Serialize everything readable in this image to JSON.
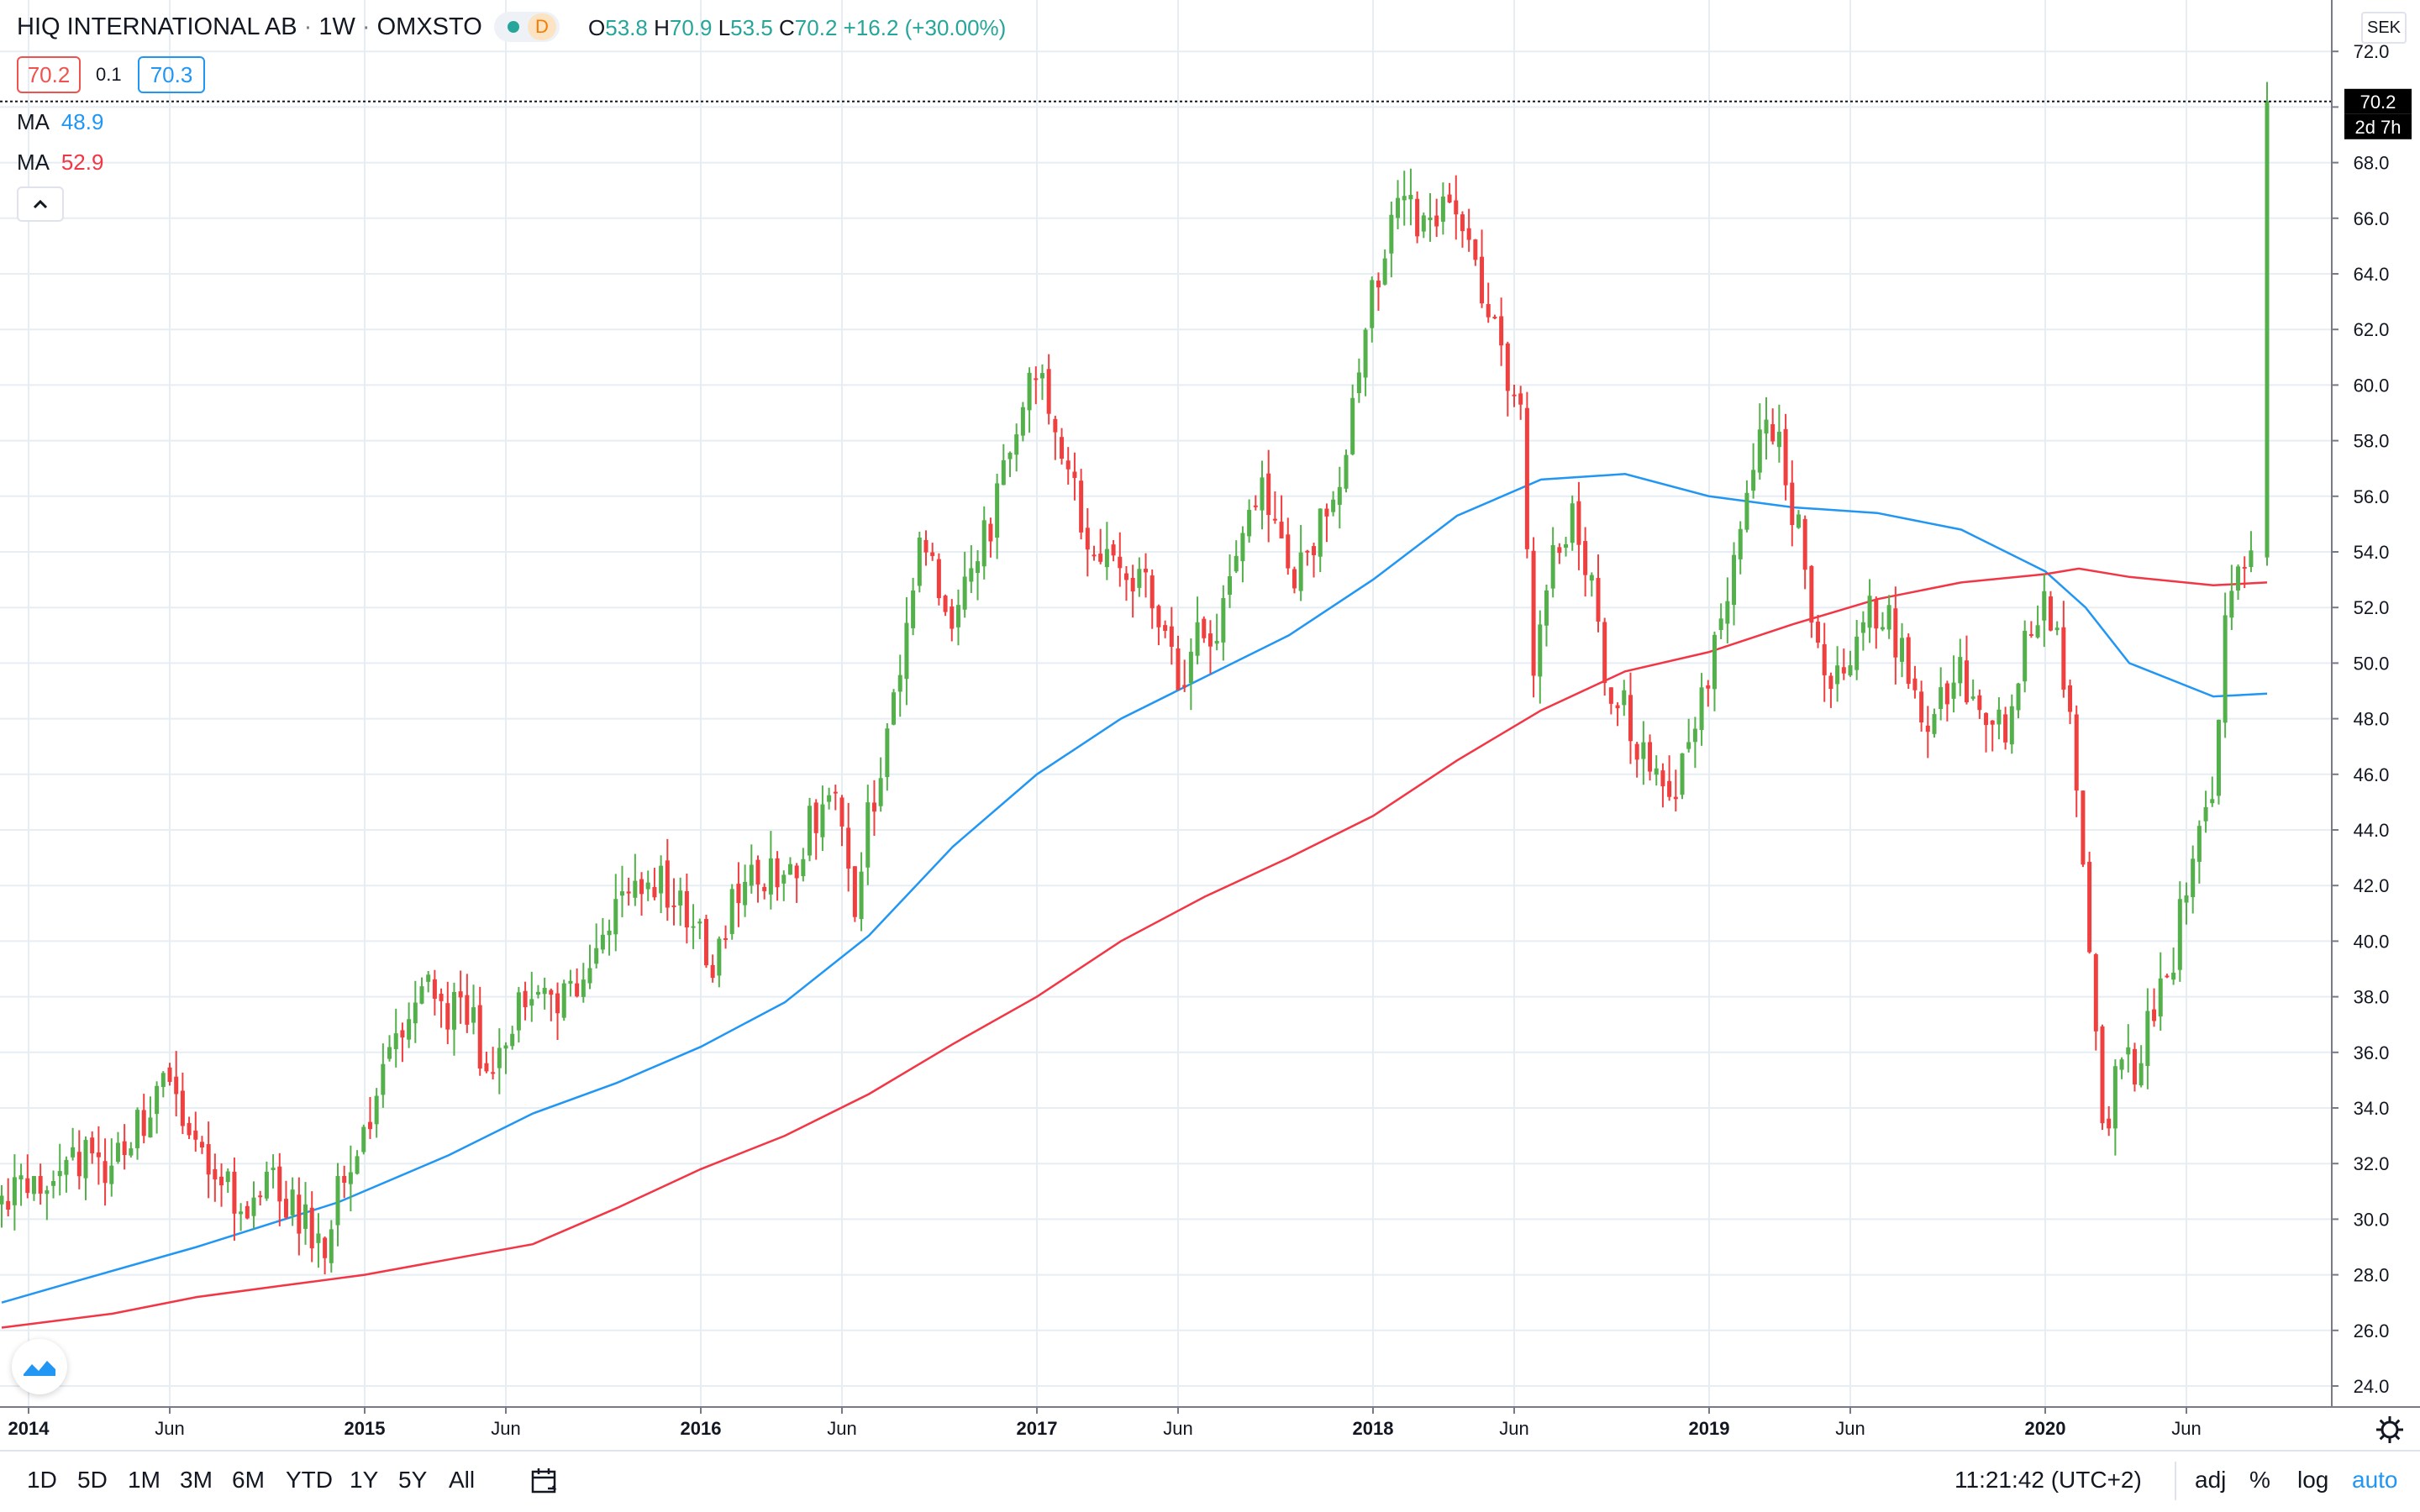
{
  "header": {
    "symbol": "HIQ INTERNATIONAL AB",
    "interval": "1W",
    "exchange": "OMXSTO",
    "data_flag": "D",
    "ohlc": {
      "o_label": "O",
      "o": "53.8",
      "h_label": "H",
      "h": "70.9",
      "l_label": "L",
      "l": "53.5",
      "c_label": "C",
      "c": "70.2",
      "change": "+16.2 (+30.00%)"
    },
    "bid": "70.2",
    "spread": "0.1",
    "ask": "70.3"
  },
  "indicators": [
    {
      "label": "MA",
      "value": "48.9",
      "color": "#2196f3"
    },
    {
      "label": "MA",
      "value": "52.9",
      "color": "#f23645"
    }
  ],
  "price_axis": {
    "currency": "SEK",
    "last_price": "70.2",
    "countdown": "2d 7h",
    "ticks": [
      "72.0",
      "70.0",
      "68.0",
      "66.0",
      "64.0",
      "62.0",
      "60.0",
      "58.0",
      "56.0",
      "54.0",
      "52.0",
      "50.0",
      "48.0",
      "46.0",
      "44.0",
      "42.0",
      "40.0",
      "38.0",
      "36.0",
      "34.0",
      "32.0",
      "30.0",
      "28.0",
      "26.0",
      "24.0"
    ]
  },
  "time_axis": {
    "labels": [
      {
        "t": 2014.0,
        "label": "2014",
        "bold": true
      },
      {
        "t": 2014.42,
        "label": "Jun",
        "bold": false
      },
      {
        "t": 2015.0,
        "label": "2015",
        "bold": true
      },
      {
        "t": 2015.42,
        "label": "Jun",
        "bold": false
      },
      {
        "t": 2016.0,
        "label": "2016",
        "bold": true
      },
      {
        "t": 2016.42,
        "label": "Jun",
        "bold": false
      },
      {
        "t": 2017.0,
        "label": "2017",
        "bold": true
      },
      {
        "t": 2017.42,
        "label": "Jun",
        "bold": false
      },
      {
        "t": 2018.0,
        "label": "2018",
        "bold": true
      },
      {
        "t": 2018.42,
        "label": "Jun",
        "bold": false
      },
      {
        "t": 2019.0,
        "label": "2019",
        "bold": true
      },
      {
        "t": 2019.42,
        "label": "Jun",
        "bold": false
      },
      {
        "t": 2020.0,
        "label": "2020",
        "bold": true
      },
      {
        "t": 2020.42,
        "label": "Jun",
        "bold": false
      }
    ]
  },
  "bottom_toolbar": {
    "ranges": [
      "1D",
      "5D",
      "1M",
      "3M",
      "6M",
      "YTD",
      "1Y",
      "5Y",
      "All"
    ],
    "clock": "11:21:42 (UTC+2)",
    "options": [
      "adj",
      "%",
      "log",
      "auto"
    ]
  },
  "colors": {
    "up": "#26a69a",
    "up_candle": "#53b04a",
    "down": "#ef3f3f",
    "ma_fast": "#2196f3",
    "ma_slow": "#f23645",
    "grid": "#e6eef4"
  },
  "chart_data": {
    "type": "candlestick",
    "ylim": [
      23,
      73
    ],
    "xlim": [
      2013.92,
      2020.75
    ],
    "anchors": [
      [
        2013.92,
        30.5
      ],
      [
        2014.05,
        31
      ],
      [
        2014.15,
        32.5
      ],
      [
        2014.25,
        31.5
      ],
      [
        2014.33,
        33
      ],
      [
        2014.42,
        34.6
      ],
      [
        2014.5,
        33
      ],
      [
        2014.58,
        31.5
      ],
      [
        2014.67,
        30
      ],
      [
        2014.75,
        31.5
      ],
      [
        2014.83,
        30
      ],
      [
        2014.9,
        29
      ],
      [
        2014.96,
        32
      ],
      [
        2015.05,
        34
      ],
      [
        2015.1,
        36.5
      ],
      [
        2015.18,
        38.5
      ],
      [
        2015.25,
        37.5
      ],
      [
        2015.33,
        37.5
      ],
      [
        2015.38,
        35
      ],
      [
        2015.45,
        37
      ],
      [
        2015.5,
        38
      ],
      [
        2015.58,
        37.5
      ],
      [
        2015.67,
        38.5
      ],
      [
        2015.75,
        41
      ],
      [
        2015.83,
        42
      ],
      [
        2015.9,
        42
      ],
      [
        2015.96,
        41.5
      ],
      [
        2016.02,
        40.5
      ],
      [
        2016.06,
        39
      ],
      [
        2016.12,
        42
      ],
      [
        2016.2,
        42.5
      ],
      [
        2016.28,
        42
      ],
      [
        2016.35,
        44.5
      ],
      [
        2016.43,
        45
      ],
      [
        2016.47,
        41
      ],
      [
        2016.52,
        44.5
      ],
      [
        2016.58,
        48
      ],
      [
        2016.63,
        50.5
      ],
      [
        2016.67,
        55
      ],
      [
        2016.72,
        53
      ],
      [
        2016.76,
        51
      ],
      [
        2016.82,
        53
      ],
      [
        2016.88,
        55
      ],
      [
        2016.94,
        57.5
      ],
      [
        2017.0,
        61
      ],
      [
        2017.04,
        59.5
      ],
      [
        2017.1,
        57.5
      ],
      [
        2017.16,
        55
      ],
      [
        2017.24,
        54
      ],
      [
        2017.32,
        53
      ],
      [
        2017.38,
        52
      ],
      [
        2017.45,
        49
      ],
      [
        2017.5,
        51.5
      ],
      [
        2017.56,
        51
      ],
      [
        2017.62,
        54.5
      ],
      [
        2017.68,
        56.5
      ],
      [
        2017.73,
        55
      ],
      [
        2017.78,
        53
      ],
      [
        2017.84,
        54.5
      ],
      [
        2017.92,
        56.5
      ],
      [
        2017.96,
        59
      ],
      [
        2018.02,
        63.5
      ],
      [
        2018.08,
        66.5
      ],
      [
        2018.12,
        67
      ],
      [
        2018.18,
        65
      ],
      [
        2018.22,
        66
      ],
      [
        2018.28,
        66.5
      ],
      [
        2018.32,
        64.5
      ],
      [
        2018.36,
        62.5
      ],
      [
        2018.42,
        60.5
      ],
      [
        2018.46,
        59
      ],
      [
        2018.48,
        53
      ],
      [
        2018.5,
        49
      ],
      [
        2018.53,
        52.5
      ],
      [
        2018.58,
        55
      ],
      [
        2018.63,
        55
      ],
      [
        2018.68,
        52
      ],
      [
        2018.72,
        49
      ],
      [
        2018.78,
        48
      ],
      [
        2018.84,
        46
      ],
      [
        2018.9,
        44.5
      ],
      [
        2018.96,
        47
      ],
      [
        2019.02,
        50
      ],
      [
        2019.08,
        53
      ],
      [
        2019.13,
        55.5
      ],
      [
        2019.18,
        58.5
      ],
      [
        2019.22,
        58
      ],
      [
        2019.26,
        56
      ],
      [
        2019.3,
        54
      ],
      [
        2019.34,
        51
      ],
      [
        2019.38,
        49
      ],
      [
        2019.44,
        50.5
      ],
      [
        2019.5,
        52
      ],
      [
        2019.56,
        51.5
      ],
      [
        2019.62,
        49
      ],
      [
        2019.66,
        47
      ],
      [
        2019.72,
        49
      ],
      [
        2019.76,
        49.5
      ],
      [
        2019.82,
        49
      ],
      [
        2019.86,
        48
      ],
      [
        2019.9,
        47.5
      ],
      [
        2019.96,
        50.5
      ],
      [
        2020.02,
        52
      ],
      [
        2020.07,
        50
      ],
      [
        2020.1,
        48
      ],
      [
        2020.14,
        42
      ],
      [
        2020.17,
        36
      ],
      [
        2020.2,
        33
      ],
      [
        2020.24,
        35.5
      ],
      [
        2020.3,
        35.5
      ],
      [
        2020.35,
        38
      ],
      [
        2020.39,
        38.5
      ],
      [
        2020.43,
        41.5
      ],
      [
        2020.47,
        43.5
      ],
      [
        2020.52,
        45
      ],
      [
        2020.56,
        53
      ],
      [
        2020.6,
        53
      ],
      [
        2020.63,
        53.8
      ],
      [
        2020.66,
        70.2
      ]
    ],
    "last_candle": {
      "open": 53.8,
      "high": 70.9,
      "low": 53.5,
      "close": 70.2
    },
    "ma_fast": [
      [
        2013.92,
        27
      ],
      [
        2014.15,
        27.8
      ],
      [
        2014.5,
        29
      ],
      [
        2014.92,
        30.6
      ],
      [
        2015.25,
        32.3
      ],
      [
        2015.5,
        33.8
      ],
      [
        2015.75,
        34.9
      ],
      [
        2016.0,
        36.2
      ],
      [
        2016.25,
        37.8
      ],
      [
        2016.5,
        40.2
      ],
      [
        2016.75,
        43.4
      ],
      [
        2017.0,
        46
      ],
      [
        2017.25,
        48
      ],
      [
        2017.5,
        49.5
      ],
      [
        2017.75,
        51
      ],
      [
        2018.0,
        53
      ],
      [
        2018.25,
        55.3
      ],
      [
        2018.5,
        56.6
      ],
      [
        2018.75,
        56.8
      ],
      [
        2019.0,
        56
      ],
      [
        2019.25,
        55.6
      ],
      [
        2019.5,
        55.4
      ],
      [
        2019.75,
        54.8
      ],
      [
        2020.0,
        53.3
      ],
      [
        2020.12,
        52
      ],
      [
        2020.25,
        50
      ],
      [
        2020.5,
        48.8
      ],
      [
        2020.66,
        48.9
      ]
    ],
    "ma_slow": [
      [
        2013.92,
        26.1
      ],
      [
        2014.25,
        26.6
      ],
      [
        2014.5,
        27.2
      ],
      [
        2014.75,
        27.6
      ],
      [
        2015.0,
        28
      ],
      [
        2015.5,
        29.1
      ],
      [
        2015.75,
        30.4
      ],
      [
        2016.0,
        31.8
      ],
      [
        2016.25,
        33
      ],
      [
        2016.5,
        34.5
      ],
      [
        2016.75,
        36.3
      ],
      [
        2017.0,
        38
      ],
      [
        2017.25,
        40
      ],
      [
        2017.5,
        41.6
      ],
      [
        2017.75,
        43
      ],
      [
        2018.0,
        44.5
      ],
      [
        2018.25,
        46.5
      ],
      [
        2018.5,
        48.3
      ],
      [
        2018.75,
        49.7
      ],
      [
        2019.0,
        50.4
      ],
      [
        2019.25,
        51.4
      ],
      [
        2019.5,
        52.3
      ],
      [
        2019.75,
        52.9
      ],
      [
        2020.0,
        53.2
      ],
      [
        2020.1,
        53.4
      ],
      [
        2020.25,
        53.1
      ],
      [
        2020.5,
        52.8
      ],
      [
        2020.66,
        52.9
      ]
    ]
  }
}
